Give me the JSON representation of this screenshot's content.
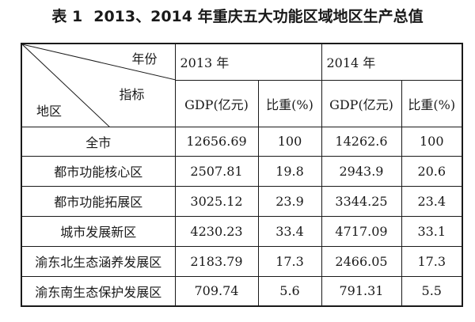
{
  "caption": {
    "label": "表 1",
    "title": "2013、2014 年重庆五大功能区域地区生产总值"
  },
  "header": {
    "corner_year": "年份",
    "corner_indicator": "指标",
    "corner_region": "地区",
    "year_2013": "2013 年",
    "year_2014": "2014 年",
    "gdp_2013": "GDP(亿元)",
    "share_2013": "比重(%)",
    "gdp_2014": "GDP(亿元)",
    "share_2014": "比重(%)"
  },
  "rows": [
    {
      "region": "全市",
      "gdp2013": "12656.69",
      "share2013": "100",
      "gdp2014": "14262.6",
      "share2014": "100"
    },
    {
      "region": "都市功能核心区",
      "gdp2013": "2507.81",
      "share2013": "19.8",
      "gdp2014": "2943.9",
      "share2014": "20.6"
    },
    {
      "region": "都市功能拓展区",
      "gdp2013": "3025.12",
      "share2013": "23.9",
      "gdp2014": "3344.25",
      "share2014": "23.4"
    },
    {
      "region": "城市发展新区",
      "gdp2013": "4230.23",
      "share2013": "33.4",
      "gdp2014": "4717.09",
      "share2014": "33.1"
    },
    {
      "region": "渝东北生态涵养发展区",
      "gdp2013": "2183.79",
      "share2013": "17.3",
      "gdp2014": "2466.05",
      "share2014": "17.3"
    },
    {
      "region": "渝东南生态保护发展区",
      "gdp2013": "709.74",
      "share2013": "5.6",
      "gdp2014": "791.31",
      "share2014": "5.5"
    }
  ]
}
